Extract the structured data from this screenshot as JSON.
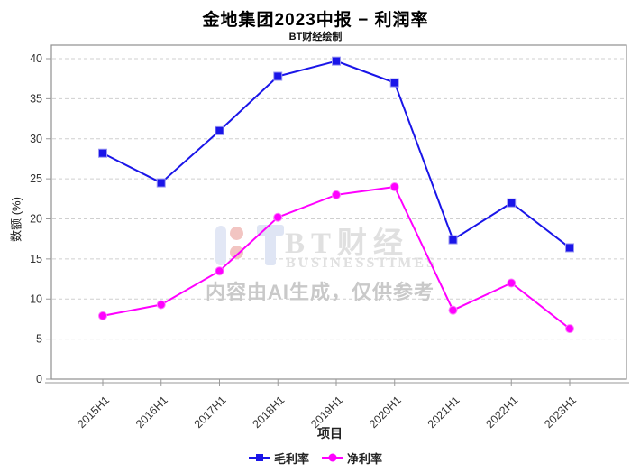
{
  "chart_data": {
    "type": "line",
    "title": "金地集团2023中报 − 利润率",
    "subtitle": "BT财经绘制",
    "xlabel": "项目",
    "ylabel": "数额 (%)",
    "categories": [
      "2015H1",
      "2016H1",
      "2017H1",
      "2018H1",
      "2019H1",
      "2020H1",
      "2021H1",
      "2022H1",
      "2023H1"
    ],
    "series": [
      {
        "name": "毛利率",
        "marker": "square",
        "color": "#1a15e8",
        "values": [
          28.2,
          24.5,
          31.0,
          37.8,
          39.7,
          37.0,
          17.4,
          22.0,
          16.4
        ]
      },
      {
        "name": "净利率",
        "marker": "circle",
        "color": "#ff00ff",
        "values": [
          7.9,
          9.3,
          13.5,
          20.2,
          23.0,
          24.0,
          8.6,
          12.0,
          6.3
        ]
      }
    ],
    "ylim": [
      0,
      40
    ],
    "ytick_step": 5,
    "grid": true,
    "legend_position": "bottom"
  },
  "watermark": {
    "logo": "bt-logo",
    "brand": "BT财经",
    "brand_sub": "BUSINESSTIMES",
    "disclaimer": "内容由AI生成，仅供参考"
  },
  "colors": {
    "grid": "#cfcfcf",
    "frame": "#8f8f8f",
    "axis": "#9a9a9a",
    "tick_text": "#333333",
    "gross_line": "#1a15e8",
    "net_line": "#ff00ff"
  }
}
